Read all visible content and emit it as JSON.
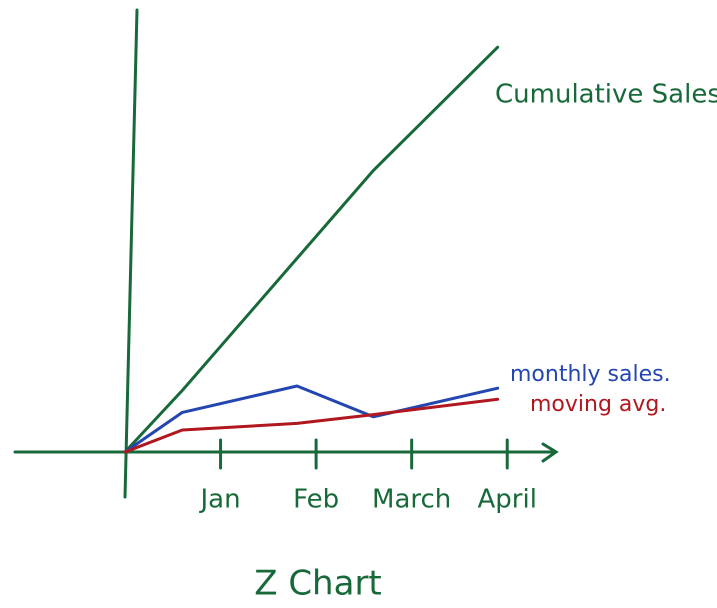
{
  "chart_data": {
    "type": "line",
    "title": "Z Chart",
    "x": [
      0,
      0.6,
      1.8,
      2.6,
      3.9
    ],
    "xlim": [
      0,
      4.5
    ],
    "xticks": [
      {
        "value": 1,
        "label": "Jan"
      },
      {
        "value": 2,
        "label": "Feb"
      },
      {
        "value": 3,
        "label": "March"
      },
      {
        "value": 4,
        "label": "April"
      }
    ],
    "ylim": [
      0,
      100
    ],
    "series": [
      {
        "name": "Cumulative Sales",
        "color": "#17693a",
        "values": [
          0,
          14,
          44,
          64,
          92
        ]
      },
      {
        "name": "monthly sales.",
        "color": "#2446b0",
        "values": [
          0,
          9,
          15,
          8,
          14.5
        ]
      },
      {
        "name": "moving avg.",
        "color": "#b0171f",
        "values": [
          0,
          5,
          6.5,
          8.5,
          12
        ]
      }
    ]
  }
}
